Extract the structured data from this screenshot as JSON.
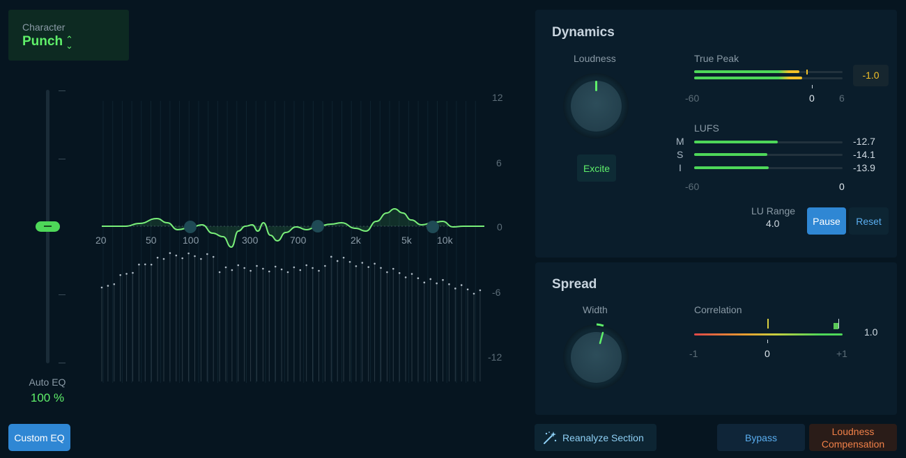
{
  "character": {
    "label": "Character",
    "value": "Punch",
    "icon": "chevron-up-down-icon"
  },
  "auto_eq": {
    "label": "Auto EQ",
    "value": "100 %",
    "level_fraction": 0.5
  },
  "custom_eq_label": "Custom EQ",
  "eq": {
    "db_labels": [
      "12",
      "6",
      "0",
      "-6",
      "-12"
    ],
    "freq_labels": [
      "20",
      "50",
      "100",
      "300",
      "700",
      "2k",
      "5k",
      "10k"
    ]
  },
  "dynamics": {
    "title": "Dynamics",
    "loudness_label": "Loudness",
    "excite_label": "Excite",
    "true_peak": {
      "label": "True Peak",
      "value": "-1.0",
      "scale": [
        "-60",
        "0",
        "6"
      ]
    },
    "lufs": {
      "label": "LUFS",
      "rows": [
        {
          "key": "M",
          "value": "-12.7"
        },
        {
          "key": "S",
          "value": "-14.1"
        },
        {
          "key": "I",
          "value": "-13.9"
        }
      ],
      "scale": [
        "-60",
        "0"
      ]
    },
    "lu_range": {
      "label": "LU Range",
      "value": "4.0"
    },
    "pause_label": "Pause",
    "reset_label": "Reset"
  },
  "spread": {
    "title": "Spread",
    "width_label": "Width",
    "correlation": {
      "label": "Correlation",
      "value": "1.0",
      "scale": [
        "-1",
        "0",
        "+1"
      ]
    }
  },
  "bottom": {
    "reanalyze_label": "Reanalyze Section",
    "reanalyze_icon": "magic-wand-icon",
    "bypass_label": "Bypass",
    "loudness_comp_line1": "Loudness",
    "loudness_comp_line2": "Compensation"
  },
  "colors": {
    "accent_green": "#5ff06a",
    "accent_blue": "#2f87d4",
    "peak_yellow": "#f2c028",
    "orange": "#f08048"
  }
}
